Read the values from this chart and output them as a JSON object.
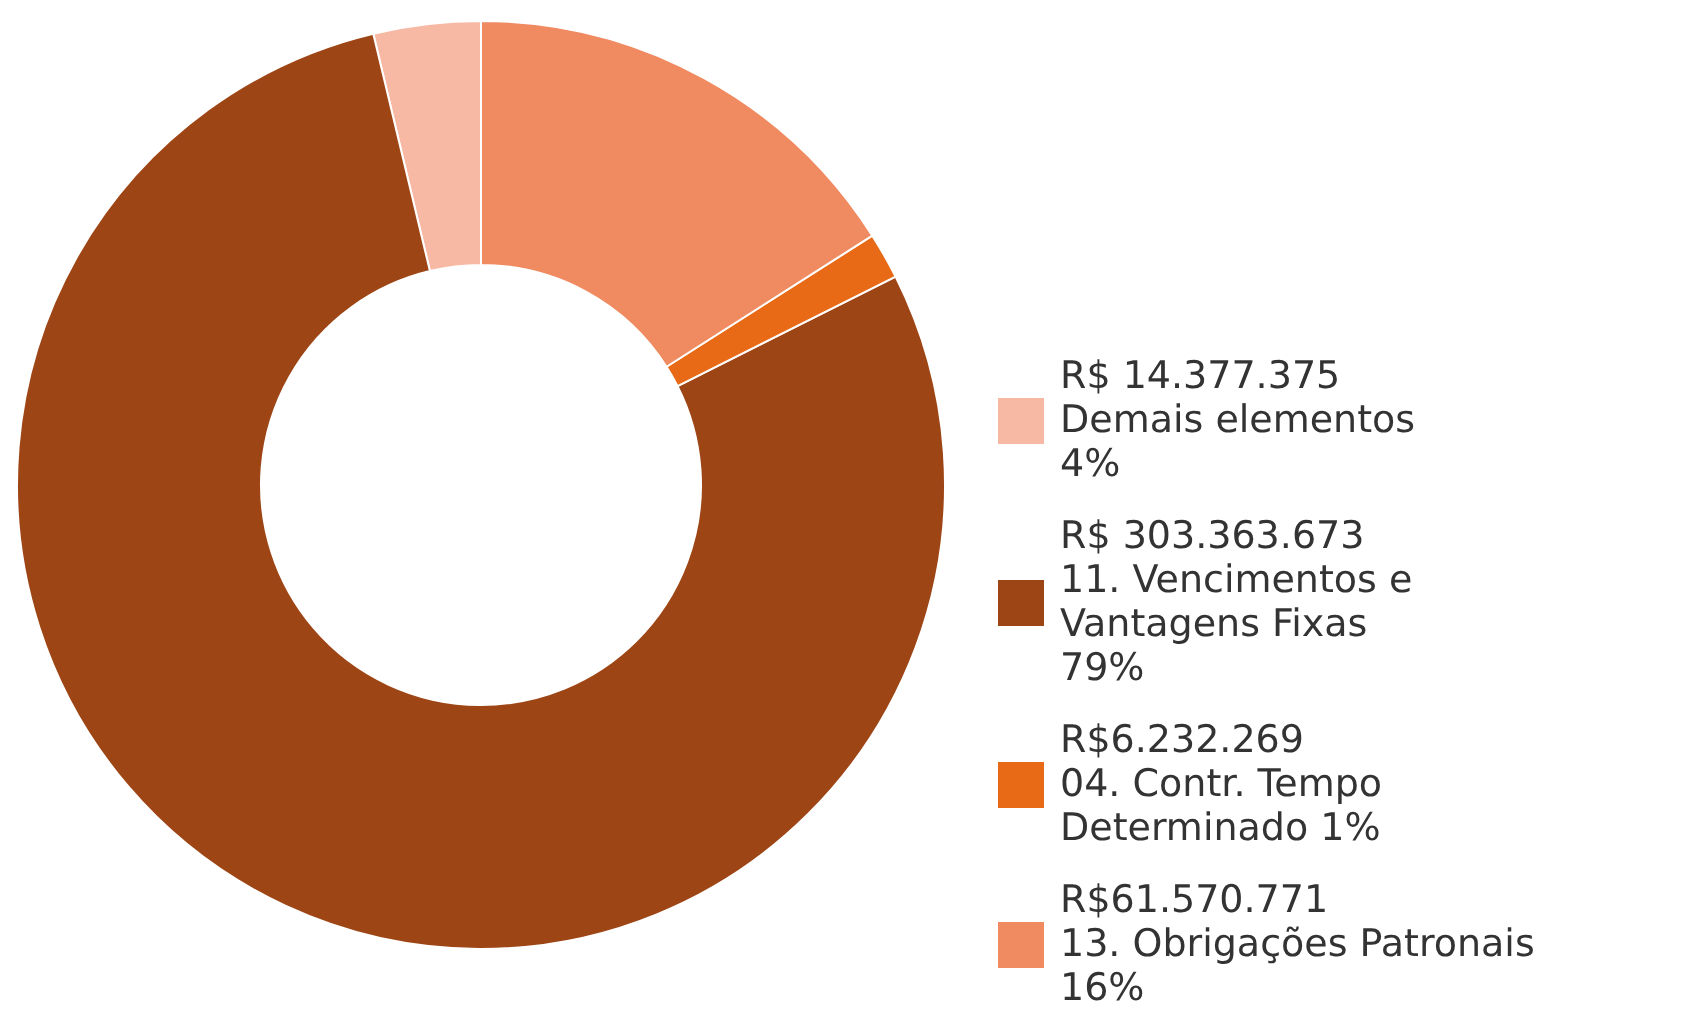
{
  "chart_data": {
    "type": "donut",
    "categories": [
      "Demais elementos\n4%",
      "11. Vencimentos e\nVantagens Fixas\n79%",
      "04. Contr. Tempo\nDeterminado 1%",
      "13. Obrigações Patronais\n16%"
    ],
    "values": [
      14377375,
      303363673,
      6232269,
      61570771
    ],
    "value_labels": [
      "R$ 14.377.375",
      "R$ 303.363.673",
      "R$6.232.269",
      "R$61.570.771"
    ],
    "colors": [
      "#f7b9a4",
      "#9e4515",
      "#e86a16",
      "#f08a60"
    ],
    "legend": "right"
  }
}
